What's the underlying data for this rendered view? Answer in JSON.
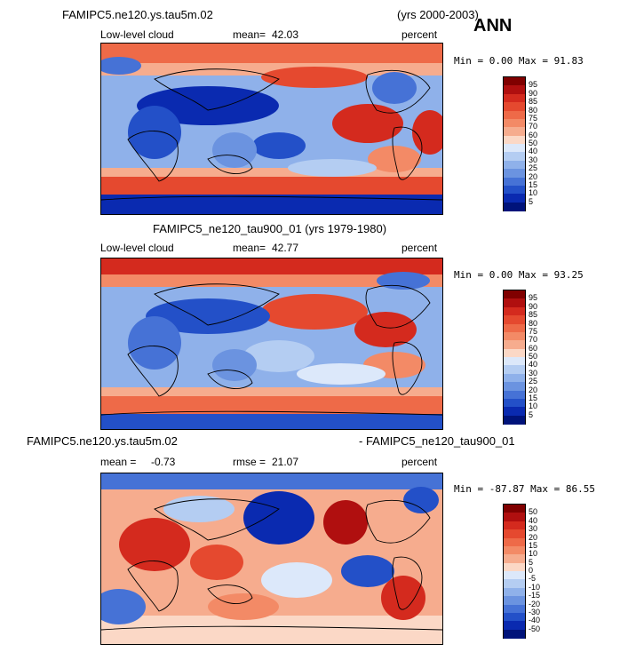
{
  "season": "ANN",
  "panels": [
    {
      "title_left": "FAMIPC5.ne120.ys.tau5m.02",
      "title_right": "(yrs 2000-2003)",
      "variable": "Low-level cloud",
      "stat_label": "mean=",
      "stat_value": "42.03",
      "units": "percent",
      "minmax": "Min =   0.00 Max =  91.83",
      "colorbar": {
        "labels": [
          "95",
          "90",
          "85",
          "80",
          "75",
          "70",
          "60",
          "50",
          "40",
          "30",
          "25",
          "20",
          "15",
          "10",
          "5"
        ],
        "colors": [
          "#800000",
          "#b00f0f",
          "#d42a1e",
          "#e5492f",
          "#ee6a48",
          "#f38a66",
          "#f6ac8e",
          "#fbd8c6",
          "#dce8fa",
          "#b4cdf2",
          "#8fb1ea",
          "#6b93e0",
          "#4672d6",
          "#2350c8",
          "#0a2ab0",
          "#00137a"
        ]
      }
    },
    {
      "title_left": "FAMIPC5_ne120_tau900_01 (yrs 1979-1980)",
      "title_right": "",
      "variable": "Low-level cloud",
      "stat_label": "mean=",
      "stat_value": "42.77",
      "units": "percent",
      "minmax": "Min =   0.00 Max =  93.25",
      "colorbar": {
        "labels": [
          "95",
          "90",
          "85",
          "80",
          "75",
          "70",
          "60",
          "50",
          "40",
          "30",
          "25",
          "20",
          "15",
          "10",
          "5"
        ],
        "colors": [
          "#800000",
          "#b00f0f",
          "#d42a1e",
          "#e5492f",
          "#ee6a48",
          "#f38a66",
          "#f6ac8e",
          "#fbd8c6",
          "#dce8fa",
          "#b4cdf2",
          "#8fb1ea",
          "#6b93e0",
          "#4672d6",
          "#2350c8",
          "#0a2ab0",
          "#00137a"
        ]
      }
    },
    {
      "title_left": "FAMIPC5.ne120.ys.tau5m.02",
      "title_right": "- FAMIPC5_ne120_tau900_01",
      "stat_label": "mean =",
      "stat_value": "-0.73",
      "stat2_label": "rmse =",
      "stat2_value": "21.07",
      "units": "percent",
      "minmax": "Min = -87.87 Max =  86.55",
      "colorbar": {
        "labels": [
          "50",
          "40",
          "30",
          "20",
          "15",
          "10",
          "5",
          "0",
          "-5",
          "-10",
          "-15",
          "-20",
          "-30",
          "-40",
          "-50"
        ],
        "colors": [
          "#800000",
          "#b00f0f",
          "#d42a1e",
          "#e5492f",
          "#ee6a48",
          "#f38a66",
          "#f6ac8e",
          "#fbd8c6",
          "#dce8fa",
          "#b4cdf2",
          "#8fb1ea",
          "#6b93e0",
          "#4672d6",
          "#2350c8",
          "#0a2ab0",
          "#00137a"
        ]
      }
    }
  ]
}
